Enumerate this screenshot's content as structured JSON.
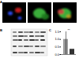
{
  "figure": {
    "panel_labels": [
      "A",
      "B",
      "C"
    ]
  },
  "chart_data": {
    "type": "bar",
    "categories": [
      null,
      null
    ],
    "values": [
      1.0,
      0.35
    ],
    "colors": [
      "#9a9a9a",
      "#333333"
    ],
    "ylim": [
      0,
      1.5
    ],
    "yticks": [
      0,
      0.5,
      1,
      1.5
    ],
    "annotation": "**",
    "tick_labels": "y",
    "grid": false
  }
}
